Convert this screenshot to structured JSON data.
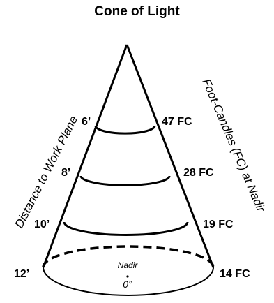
{
  "title": "Cone of Light",
  "left_axis_label": "Distance to Work Plane",
  "right_axis_label": "Foot-Candles (FC) at Nadir",
  "levels": [
    {
      "distance": "6’",
      "footcandles": "47 FC"
    },
    {
      "distance": "8’",
      "footcandles": "28 FC"
    },
    {
      "distance": "10’",
      "footcandles": "19 FC"
    },
    {
      "distance": "12’",
      "footcandles": "14 FC"
    }
  ],
  "base": {
    "label": "Nadir",
    "angle": "0°"
  }
}
